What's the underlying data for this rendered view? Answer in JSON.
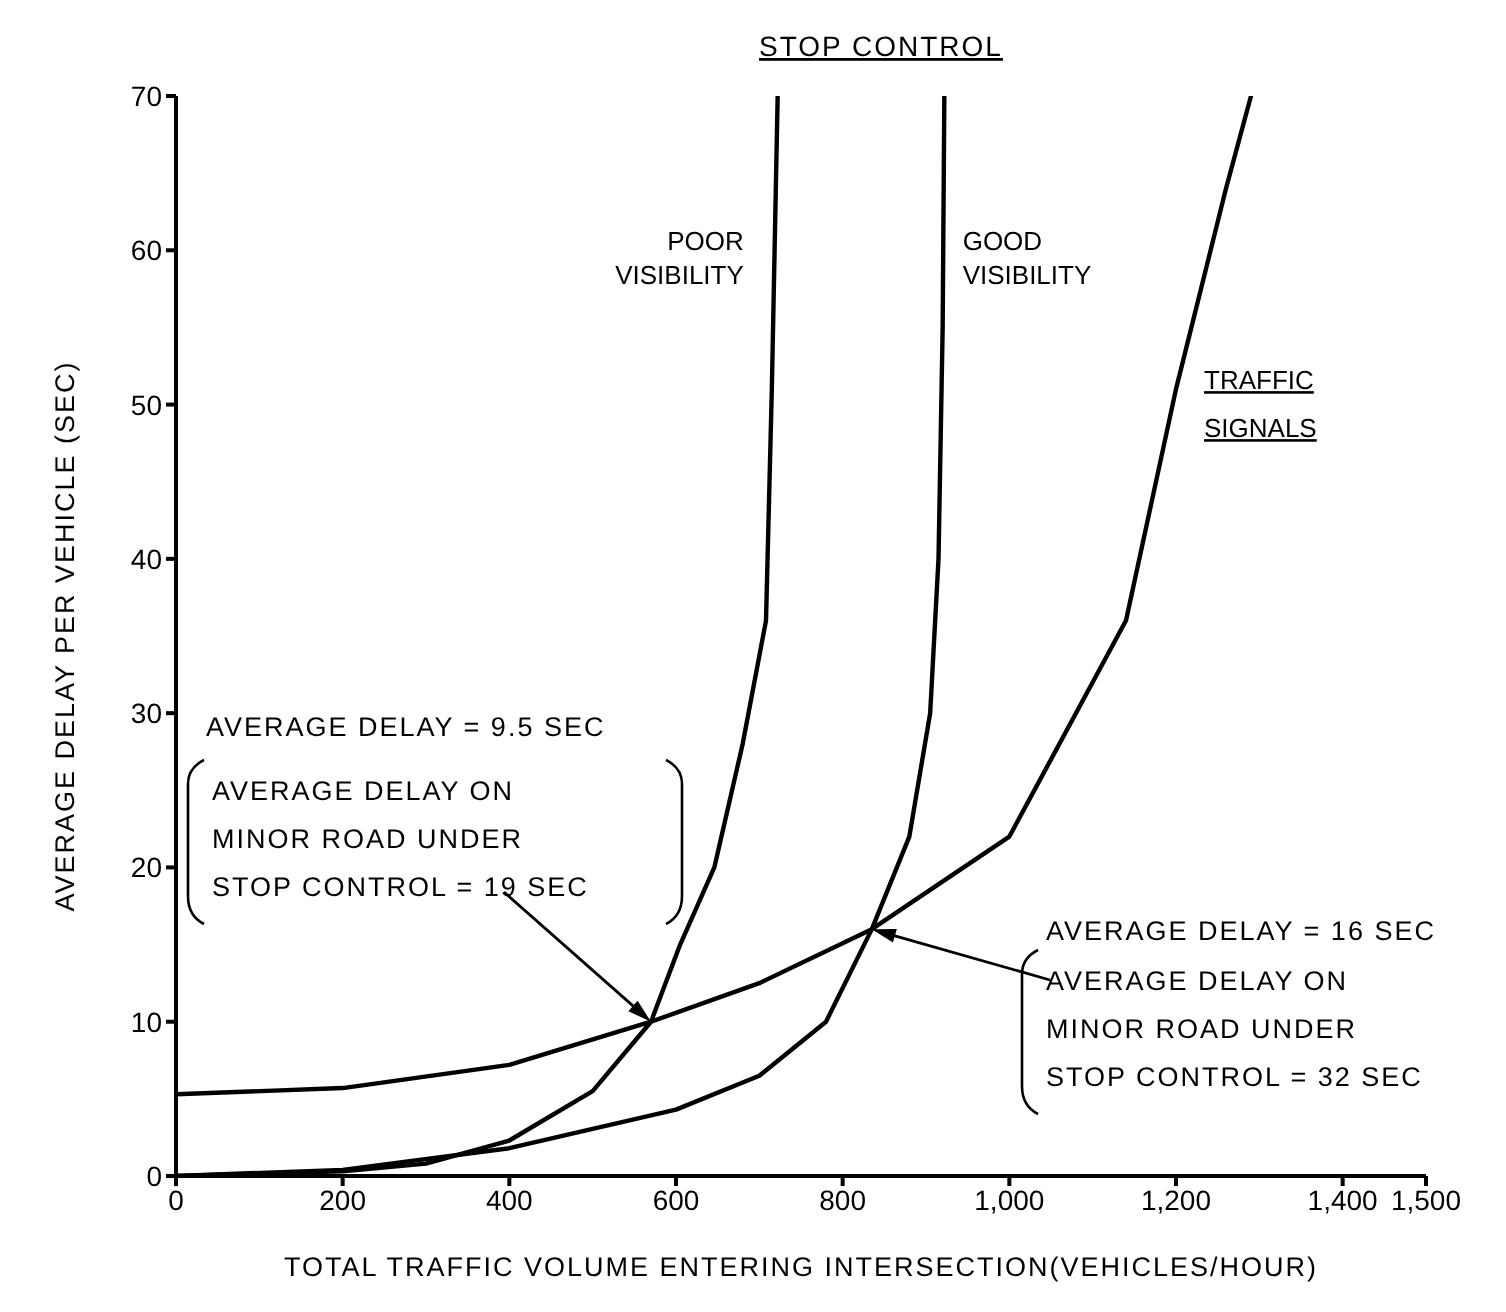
{
  "chart_data": {
    "type": "line",
    "title": "STOP CONTROL",
    "xlabel": "TOTAL TRAFFIC VOLUME ENTERING INTERSECTION(VEHICLES/HOUR)",
    "ylabel": "AVERAGE DELAY PER VEHICLE (SEC)",
    "xlim": [
      0,
      1500
    ],
    "xticks": [
      0,
      200,
      400,
      600,
      800,
      {
        "value": 1000,
        "label": "1,000"
      },
      {
        "value": 1200,
        "label": "1,200"
      },
      {
        "value": 1400,
        "label": "1,400"
      },
      {
        "value": 1500,
        "label": "1,500"
      }
    ],
    "ylim": [
      0,
      70
    ],
    "yticks": [
      0,
      10,
      20,
      30,
      40,
      50,
      60,
      70
    ],
    "grid": false,
    "legend": false,
    "marker": "none",
    "line_style": "solid",
    "series": [
      {
        "name": "POOR VISIBILITY",
        "color": "#000000",
        "x": [
          0,
          200,
          300,
          400,
          500,
          570,
          605,
          646,
          680,
          708,
          715,
          722
        ],
        "values": [
          0,
          0.3,
          0.8,
          2.3,
          5.5,
          10,
          15,
          20,
          28,
          36,
          51,
          70
        ]
      },
      {
        "name": "GOOD VISIBILITY",
        "color": "#000000",
        "x": [
          0,
          200,
          400,
          600,
          700,
          780,
          835,
          880,
          905,
          915,
          920,
          922
        ],
        "values": [
          0,
          0.4,
          1.8,
          4.3,
          6.5,
          10,
          16,
          22,
          30,
          40,
          55,
          70
        ]
      },
      {
        "name": "TRAFFIC SIGNALS",
        "color": "#000000",
        "x": [
          0,
          200,
          400,
          570,
          700,
          835,
          1000,
          1140,
          1200,
          1260,
          1290
        ],
        "values": [
          5.3,
          5.7,
          7.2,
          10,
          12.5,
          16,
          22,
          36,
          51,
          64,
          70
        ]
      }
    ],
    "annotations": [
      "AVERAGE DELAY = 9.5 SEC",
      "AVERAGE DELAY ON\nMINOR ROAD UNDER\nSTOP CONTROL = 19 SEC",
      "AVERAGE DELAY = 16 SEC",
      "AVERAGE DELAY ON\nMINOR ROAD UNDER\nSTOP CONTROL = 32 SEC"
    ]
  }
}
